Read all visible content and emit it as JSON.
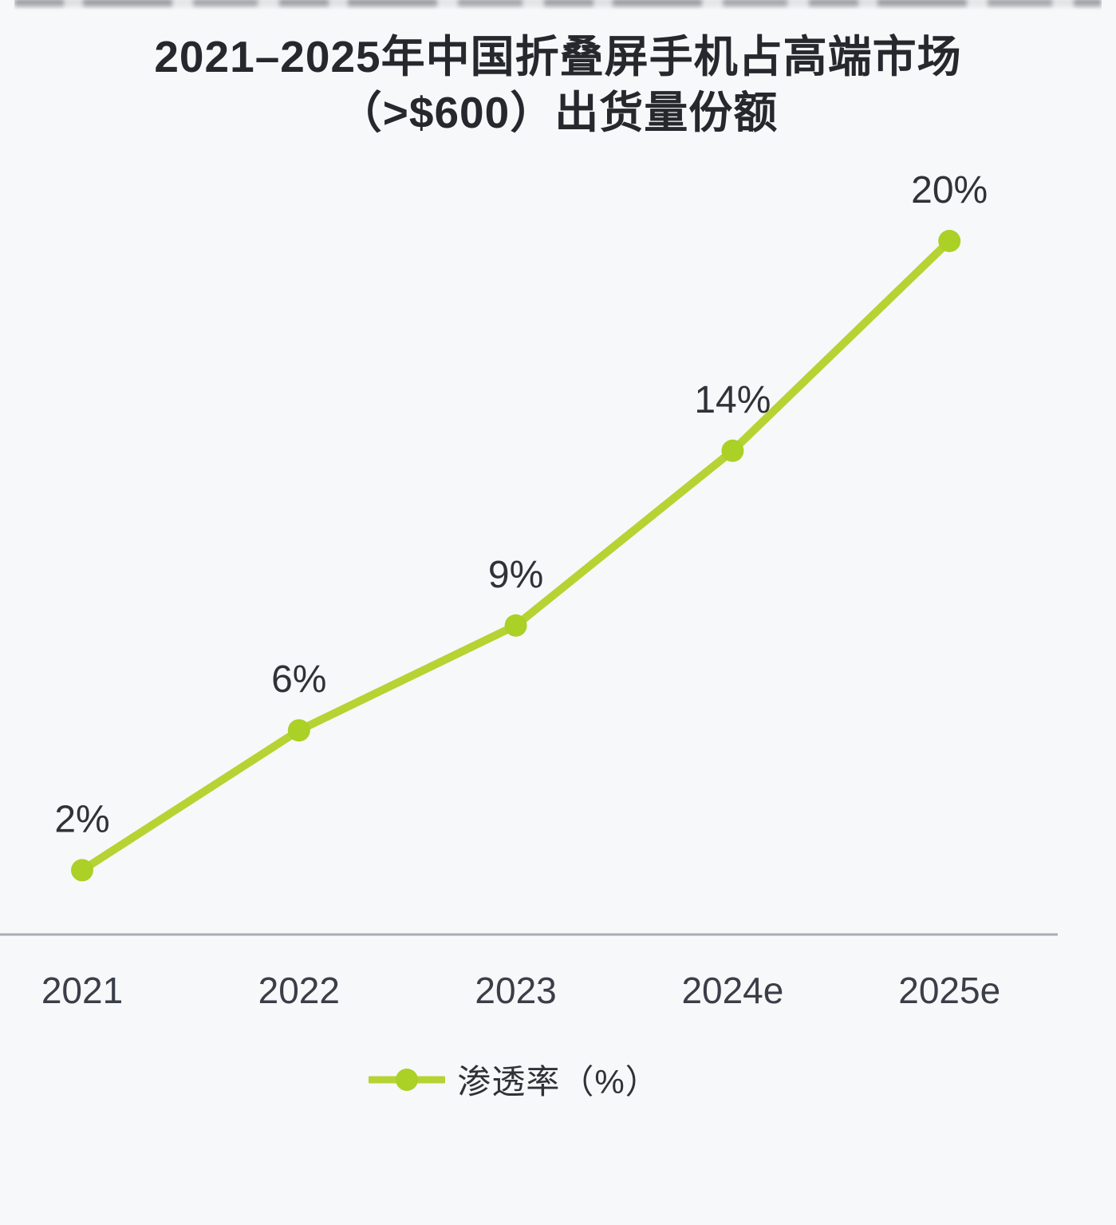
{
  "chart_data": {
    "type": "line",
    "title": "2021–2025年中国折叠屏手机占高端市场（>$600）出货量份额",
    "title_lines": [
      "2021–2025年中国折叠屏手机占高端市场",
      "（>$600）出货量份额"
    ],
    "categories": [
      "2021",
      "2022",
      "2023",
      "2024e",
      "2025e"
    ],
    "series": [
      {
        "name": "渗透率（%）",
        "values": [
          2,
          6,
          9,
          14,
          20
        ]
      }
    ],
    "data_labels": [
      "2%",
      "6%",
      "9%",
      "14%",
      "20%"
    ],
    "xlabel": "",
    "ylabel": "",
    "ylim": [
      0,
      22
    ],
    "grid": false,
    "legend_position": "bottom",
    "colors": {
      "line": "#b5d333",
      "marker": "#abd026",
      "title_text": "#26282e",
      "data_label_text": "#2f3237",
      "axis_label_text": "#3a3e48",
      "axis_line": "#a8aeb6",
      "background": "#f7f8f9"
    }
  }
}
